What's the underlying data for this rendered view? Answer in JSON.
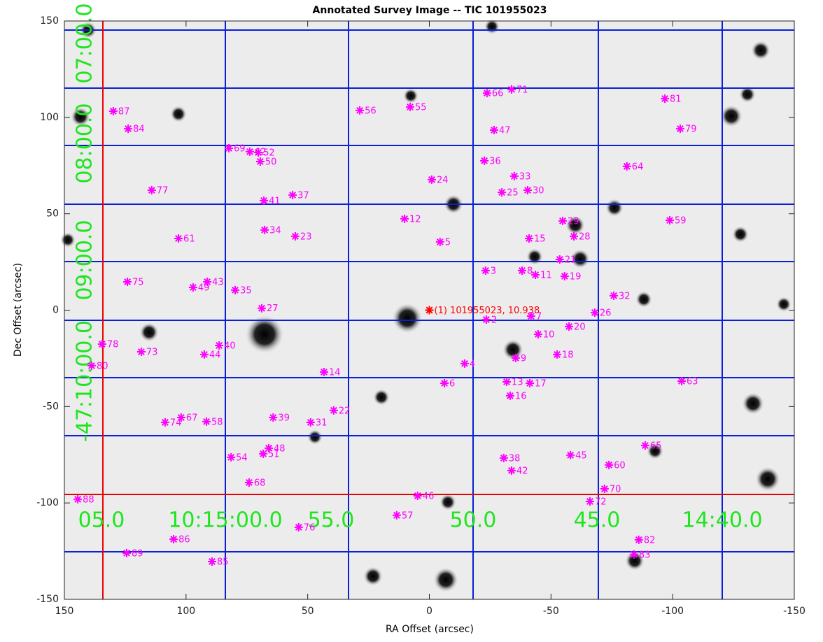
{
  "chart_data": {
    "type": "scatter",
    "title": "Annotated Survey Image -- TIC 101955023",
    "x_label": "RA Offset (arcsec)",
    "y_label": "Dec Offset (arcsec)",
    "xlim": [
      150,
      -150
    ],
    "ylim": [
      -150,
      150
    ],
    "xticks": [
      150,
      100,
      50,
      0,
      -50,
      -100,
      -150
    ],
    "yticks": [
      150,
      100,
      50,
      0,
      -50,
      -100,
      -150
    ],
    "ra_grid_labels": [
      "05.0",
      "10:15:00.0",
      "55.0",
      "50.0",
      "45.0",
      "14:40.0"
    ],
    "dec_grid_labels": [
      "07:00.0",
      "08:00.0",
      "09:00.0",
      "-47:10:00.0"
    ],
    "series": [
      {
        "color": "#ff0000",
        "x": [
          0
        ],
        "y": [
          0
        ],
        "labels": [
          "(1) 101955023, 10.938"
        ]
      },
      {
        "color": "#ff00ff",
        "labels": [
          "2",
          "3",
          "4",
          "5",
          "6",
          "7",
          "8",
          "9",
          "10",
          "11",
          "12",
          "13",
          "14",
          "15",
          "16",
          "17",
          "18",
          "19",
          "20",
          "21",
          "22",
          "23",
          "24",
          "25",
          "26",
          "27",
          "28",
          "29",
          "30",
          "31",
          "32",
          "33",
          "34",
          "35",
          "36",
          "37",
          "38",
          "39",
          "40",
          "41",
          "42",
          "43",
          "44",
          "45",
          "46",
          "47",
          "48",
          "49",
          "50",
          "51",
          "52",
          "54",
          "55",
          "56",
          "57",
          "58",
          "59",
          "60",
          "61",
          "62",
          "63",
          "64",
          "65",
          "66",
          "67",
          "68",
          "69",
          "70",
          "71",
          "72",
          "73",
          "74",
          "75",
          "76",
          "77",
          "78",
          "79",
          "80",
          "81",
          "82",
          "83",
          "84",
          "85",
          "86",
          "87",
          "88",
          "89"
        ],
        "x": [
          -23.4,
          -23.1,
          -14.5,
          -4.4,
          -6.2,
          -41.8,
          -38.1,
          -35.5,
          -44.7,
          -43.6,
          10.2,
          -31.8,
          43.3,
          -41,
          -33.2,
          -41.3,
          -52.5,
          -55.6,
          -57.4,
          -53.6,
          39.3,
          55.1,
          -1,
          -29.8,
          -68,
          68.9,
          -59.4,
          -54.8,
          -40.4,
          48.8,
          -75.8,
          -34.9,
          67.7,
          79.8,
          -22.6,
          56.2,
          -30.6,
          64.2,
          86.4,
          68,
          -33.8,
          91.3,
          92.5,
          -58,
          4.8,
          -26.6,
          66,
          97.1,
          69.5,
          68.3,
          70.3,
          81.5,
          7.9,
          28.6,
          13.4,
          91.6,
          -98.8,
          -73.8,
          103.1,
          73.8,
          -103.7,
          -81.2,
          -88.7,
          -23.7,
          102,
          74.1,
          82.4,
          -72,
          -33.8,
          -66,
          118.4,
          108.6,
          124.1,
          53.7,
          114.1,
          134.5,
          -103.1,
          138.8,
          -96.8,
          -86.1,
          -84.1,
          123.8,
          89.3,
          105.1,
          129.9,
          144.5,
          124.4
        ],
        "y": [
          -4.9,
          20.5,
          -27.7,
          35.4,
          -37.9,
          -3.1,
          20.5,
          -24.8,
          -12.5,
          18.3,
          47.4,
          -37.2,
          -32.1,
          37.2,
          -44.4,
          -37.9,
          -23,
          17.6,
          -8.5,
          26.3,
          -52,
          38.3,
          67.7,
          61.1,
          -1.3,
          1,
          38.3,
          46.3,
          62.2,
          -58.2,
          7.5,
          69.5,
          41.6,
          10.4,
          77.5,
          59.7,
          -76.7,
          -55.7,
          -18.3,
          56.8,
          -83.2,
          14.7,
          -23,
          -75.2,
          -96.3,
          93.4,
          -71.6,
          11.8,
          77.1,
          -74.5,
          81.8,
          -76.3,
          105.4,
          103.6,
          -106.4,
          -57.8,
          46.6,
          -80.3,
          37.2,
          82.2,
          -36.8,
          74.6,
          -70.2,
          112.6,
          -55.7,
          -89.4,
          84,
          -92.7,
          114.5,
          -99.2,
          -21.6,
          -58.2,
          14.7,
          -112.6,
          62.2,
          -17.6,
          94.1,
          -28.8,
          109.7,
          -119.1,
          -126.7,
          94.1,
          -130.4,
          -118.8,
          103.2,
          -98.1,
          -126
        ]
      }
    ]
  }
}
